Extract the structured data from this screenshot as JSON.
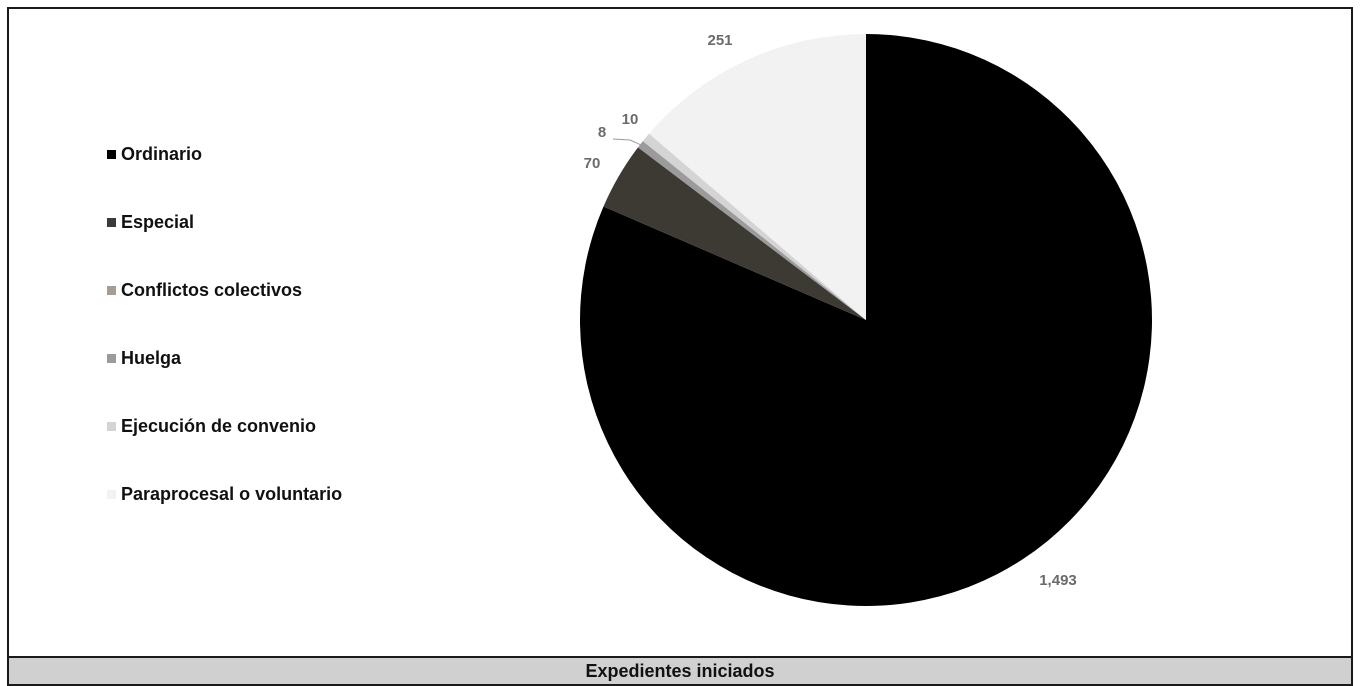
{
  "chart_data": {
    "type": "pie",
    "title": "Expedientes iniciados",
    "categories": [
      "Ordinario",
      "Especial",
      "Conflictos colectivos",
      "Huelga",
      "Ejecución de convenio",
      "Paraprocesal o voluntario"
    ],
    "values": [
      1493,
      70,
      0,
      8,
      10,
      251
    ],
    "data_labels": [
      "1,493",
      "70",
      "",
      "8",
      "10",
      "251"
    ],
    "colors": [
      "#000000",
      "#3d3a34",
      "#a59d94",
      "#9b9b9b",
      "#d4d4d4",
      "#f2f2f2"
    ],
    "legend_position": "left"
  }
}
